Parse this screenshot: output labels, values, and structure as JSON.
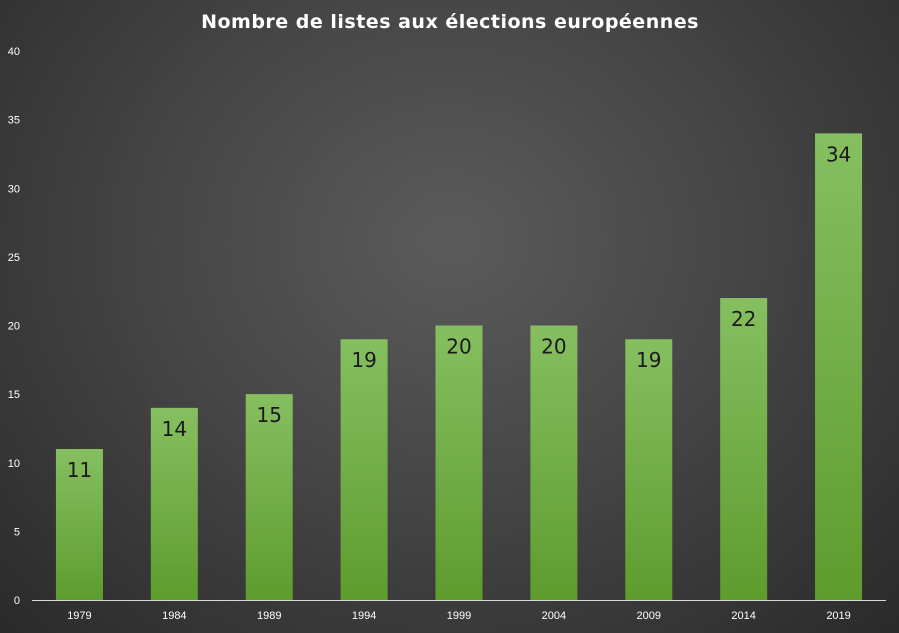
{
  "chart_data": {
    "type": "bar",
    "title": "Nombre de listes aux élections européennes",
    "xlabel": "",
    "ylabel": "",
    "categories": [
      "1979",
      "1984",
      "1989",
      "1994",
      "1999",
      "2004",
      "2009",
      "2014",
      "2019"
    ],
    "values": [
      11,
      14,
      15,
      19,
      20,
      20,
      19,
      22,
      34
    ],
    "data_labels": [
      "11",
      "14",
      "15",
      "19",
      "20",
      "20",
      "19",
      "22",
      "34"
    ],
    "ylim": [
      0,
      40
    ],
    "y_ticks": [
      0,
      5,
      10,
      15,
      20,
      25,
      30,
      35,
      40
    ],
    "grid": false,
    "legend": "none",
    "colors": {
      "bar_top": "#86bf60",
      "bar_bottom": "#5e9c2e",
      "background_center": "#5b5b5b",
      "background_edge": "#2a2a2a",
      "text": "#ffffff",
      "data_label": "#1a1a1a",
      "axis_line": "#d9d9d9"
    }
  }
}
